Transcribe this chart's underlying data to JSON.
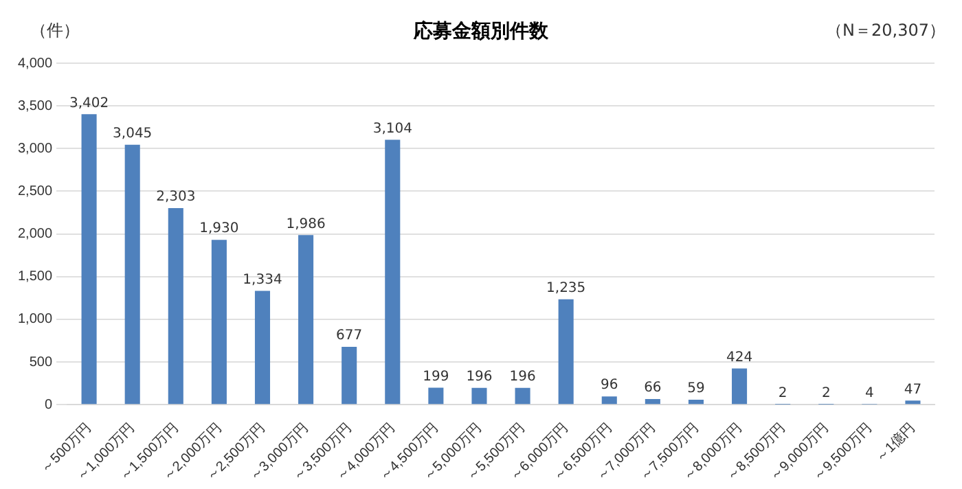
{
  "chart_data": {
    "type": "bar",
    "title": "応募金額別件数",
    "ylabel": "（件）",
    "annotations": [
      "（N＝20,307）"
    ],
    "categories": [
      "～500万円",
      "～1,000万円",
      "～1,500万円",
      "～2,000万円",
      "～2,500万円",
      "～3,000万円",
      "～3,500万円",
      "～4,000万円",
      "～4,500万円",
      "～5,000万円",
      "～5,500万円",
      "～6,000万円",
      "～6,500万円",
      "～7,000万円",
      "～7,500万円",
      "～8,000万円",
      "～8,500万円",
      "～9,000万円",
      "～9,500万円",
      "～1億円"
    ],
    "values": [
      3402,
      3045,
      2303,
      1930,
      1334,
      1986,
      677,
      3104,
      199,
      196,
      196,
      1235,
      96,
      66,
      59,
      424,
      2,
      2,
      4,
      47
    ],
    "value_labels": [
      "3,402",
      "3,045",
      "2,303",
      "1,930",
      "1,334",
      "1,986",
      "677",
      "3,104",
      "199",
      "196",
      "196",
      "1,235",
      "96",
      "66",
      "59",
      "424",
      "2",
      "2",
      "4",
      "47"
    ],
    "color": "#4f81bd",
    "ylim": [
      0,
      4000
    ],
    "yticks": [
      0,
      500,
      {
        "value": 1000,
        "label": "1,000"
      },
      {
        "value": 1500,
        "label": "1,500"
      },
      {
        "value": 2000,
        "label": "2,000"
      },
      {
        "value": 2500,
        "label": "2,500"
      },
      {
        "value": 3000,
        "label": "3,000"
      },
      {
        "value": 3500,
        "label": "3,500"
      },
      {
        "value": 4000,
        "label": "4,000"
      }
    ],
    "grid": "y",
    "legend": false
  }
}
